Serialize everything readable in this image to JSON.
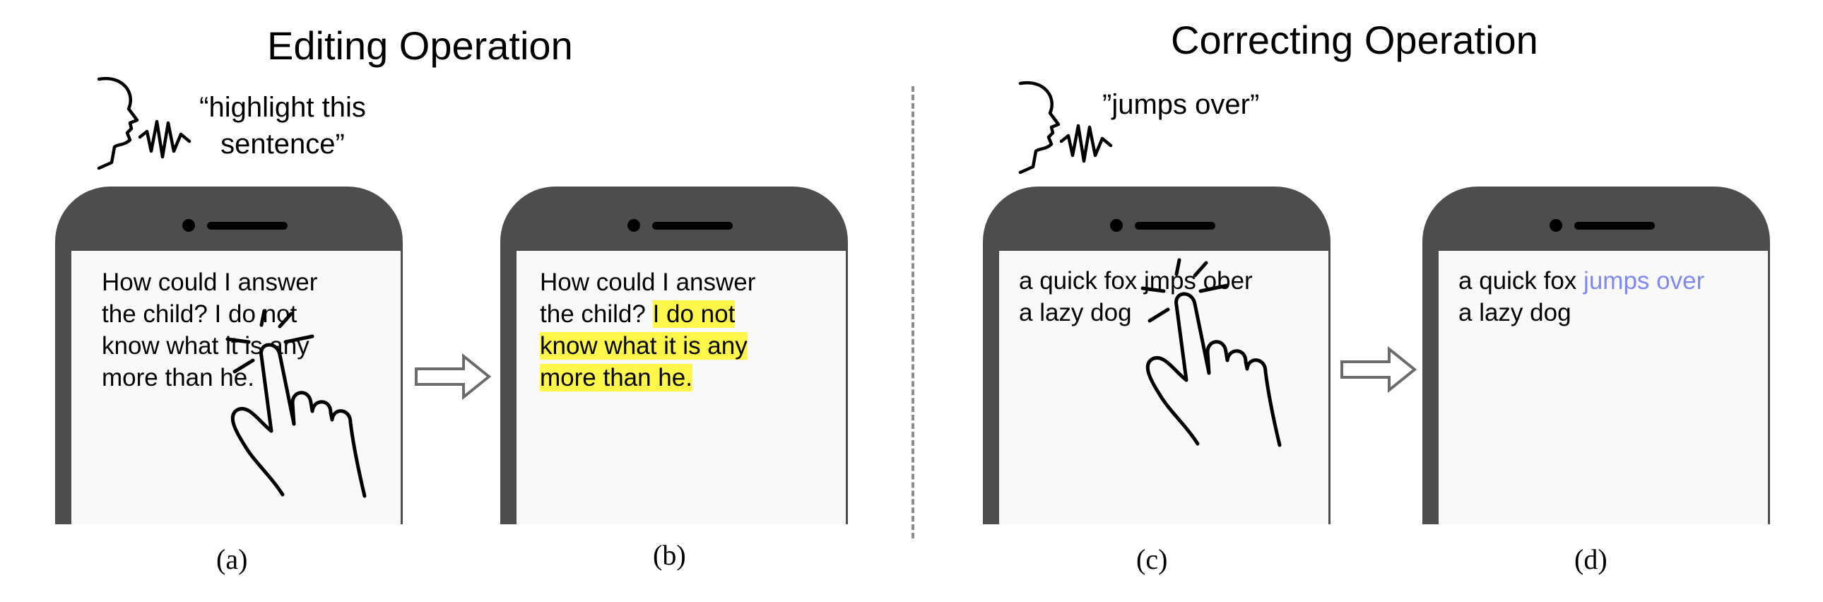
{
  "sections": {
    "left": {
      "title": "Editing Operation"
    },
    "right": {
      "title": "Correcting Operation"
    }
  },
  "speech": {
    "left": {
      "line1": "“highlight this",
      "line2": "sentence”"
    },
    "right": {
      "text": "”jumps over”"
    }
  },
  "panels": {
    "a": {
      "caption": "(a)",
      "lines": [
        "How could I answer",
        "the child? I do not",
        "know what it is any",
        "more than he."
      ]
    },
    "b": {
      "caption": "(b)",
      "line1_plain": "How could I answer",
      "line2_plain": "the child? ",
      "hl_line2": "I do not",
      "hl_line3": "know what it is any",
      "hl_line4": "more than he."
    },
    "c": {
      "caption": "(c)",
      "line1": "a quick fox jmps ober",
      "line2": "a lazy dog"
    },
    "d": {
      "caption": "(d)",
      "line1_plain": "a quick fox ",
      "line1_accent": "jumps over",
      "line2": "a lazy dog"
    }
  },
  "colors": {
    "phone": "#4d4d4d",
    "screen": "#f9f9f9",
    "highlight": "#fff64a",
    "accent": "#7f89f2",
    "divider": "#8c8c8c"
  },
  "icons": [
    "speaking-head-icon",
    "tapping-hand-icon",
    "right-arrow-icon"
  ]
}
